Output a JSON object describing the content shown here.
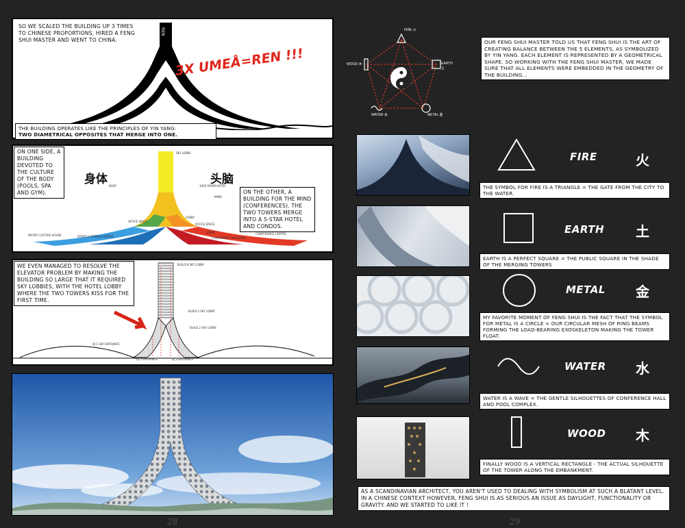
{
  "left_page": {
    "page_number": "28",
    "panel1": {
      "caption": "So we scaled the building up 3 times to Chinese proportions, hired a Feng Shui master and went to China.",
      "headline": "3X UMEÅ=REN !!!",
      "tower_label": "REN",
      "bottom_caption_a": "The building operates like the principles of Yin Yang:",
      "bottom_caption_b": "Two diametrical opposites that merge into one."
    },
    "panel2": {
      "left_caption": "On one side, a building devoted to the culture of the body (pools, spa and gym).",
      "right_caption": "On the other, a building for the mind (conferences). The two towers merge into a 5-star hotel and condos.",
      "body_char": "身体",
      "mind_char": "头脑",
      "labels": [
        "Sky lobby",
        "Body",
        "1000 room hotel",
        "Mind",
        "Lobby",
        "Office space",
        "Office space",
        "Lobby",
        "Water culture house",
        "Sport & fitness centre",
        "Conference facilities",
        "Conference centre"
      ]
    },
    "panel3": {
      "caption": "We even managed to resolve the elevator problem by making the building so large that it required sky lobbies, with the hotel lobby where the two towers kiss for the first time.",
      "arrow_label": "Hotel lobby",
      "labels": [
        "Build N sky lobby",
        "Build 4 sky lobby",
        "Build 2 sky lobby",
        "DJ 1 sky entrance",
        "DJ 2 entrance",
        "DJ 3 entrance"
      ]
    }
  },
  "right_page": {
    "page_number": "29",
    "diagram": {
      "fire": "Fire 火",
      "earth": "Earth 土",
      "metal": "Metal 金",
      "water": "Water 水",
      "wood": "Wood 木"
    },
    "intro_caption": "Our Feng Shui master told us that Feng Shui is the art of creating balance between the 5 elements, as symbolized by Yin Yang. Each element is represented by a geometrical shape. So working with the Feng Shui master, we made sure that all elements were embedded in the geometry of the building...",
    "elements": [
      {
        "name": "FIRE",
        "char": "火",
        "caption": "The symbol for Fire is a triangle = the gate from the city to the water."
      },
      {
        "name": "EARTH",
        "char": "土",
        "caption": "Earth is a perfect square = the public square in the shade of the merging towers"
      },
      {
        "name": "METAL",
        "char": "金",
        "caption": "My favorite moment of Feng Shui is the fact that the symbol for Metal is a circle = our circular mesh of ring beams forming the load-bearing exoskeleton making the tower float."
      },
      {
        "name": "WATER",
        "char": "水",
        "caption": "Water is a wave = the gentle silhouettes of conference hall and pool complex."
      },
      {
        "name": "WOOD",
        "char": "木",
        "caption": "Finally Wood is a vertical rectangle - the actual silhouette of the tower along the embankment."
      }
    ],
    "final_caption": "As a Scandinavian architect, you aren't used to dealing with symbolism at such a blatant level. In a Chinese context however, Feng Shui is as serious an issue as daylight, functionality or gravity. And we started to like it !"
  },
  "colors": {
    "background": "#232323",
    "accent_red": "#e0271c",
    "sky": "#3f7cc4"
  }
}
